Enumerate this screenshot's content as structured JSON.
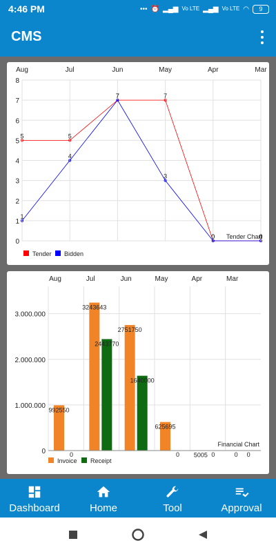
{
  "status_bar": {
    "time": "4:46 PM",
    "battery": "9",
    "lte1": "Vo LTE",
    "lte2": "Vo LTE"
  },
  "app": {
    "title": "CMS"
  },
  "chart_data": [
    {
      "type": "line",
      "categories": [
        "Aug",
        "Jul",
        "Jun",
        "May",
        "Apr",
        "Mar"
      ],
      "ylim": [
        0,
        8
      ],
      "yticks": [
        "0",
        "1",
        "2",
        "3",
        "4",
        "5",
        "6",
        "7",
        "8"
      ],
      "series": [
        {
          "name": "Tender",
          "values": [
            5,
            5,
            7,
            7,
            0,
            0
          ],
          "labels": [
            "5",
            "5",
            "7",
            "7",
            "0",
            "0"
          ],
          "color": "#ff0000"
        },
        {
          "name": "Bidden",
          "values": [
            1,
            4,
            7,
            3,
            0,
            0
          ],
          "labels": [
            "1",
            "4",
            "7",
            "3",
            "0",
            "0"
          ],
          "color": "#0000ff"
        }
      ],
      "description": "Tender Chart"
    },
    {
      "type": "bar",
      "categories": [
        "Aug",
        "Jul",
        "Jun",
        "May",
        "Apr",
        "Mar"
      ],
      "ylim": [
        0,
        3600000
      ],
      "yticks": [
        "0",
        "1.000.000",
        "2.000.000",
        "3.000.000"
      ],
      "series": [
        {
          "name": "Invoice",
          "values": [
            992550,
            3243643,
            2751750,
            625695,
            5005,
            0
          ],
          "labels": [
            "992550",
            "3243643",
            "2751750",
            "625695",
            "5005",
            "0"
          ],
          "color": "#f08426"
        },
        {
          "name": "Receipt",
          "values": [
            0,
            2443770,
            1640000,
            0,
            0,
            0
          ],
          "labels": [
            "0",
            "2443770",
            "1640000",
            "0",
            "0",
            "0"
          ],
          "color": "#0f6b12"
        }
      ],
      "description": "Financial Chart"
    }
  ],
  "bottom_nav": {
    "items": [
      {
        "label": "Dashboard",
        "icon": "dashboard-icon"
      },
      {
        "label": "Home",
        "icon": "home-icon"
      },
      {
        "label": "Tool",
        "icon": "wrench-icon"
      },
      {
        "label": "Approval",
        "icon": "approval-icon"
      }
    ]
  }
}
